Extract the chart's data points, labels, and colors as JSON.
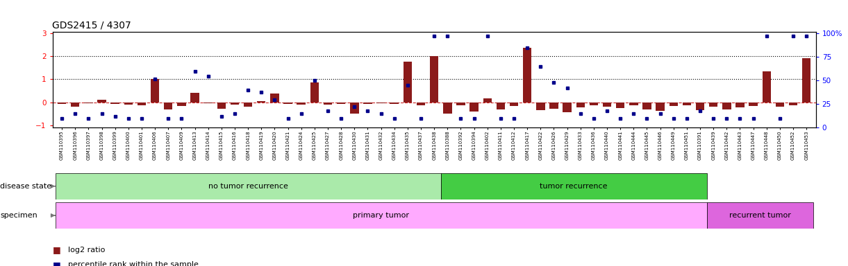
{
  "title": "GDS2415 / 4307",
  "samples": [
    "GSM110395",
    "GSM110396",
    "GSM110397",
    "GSM110398",
    "GSM110399",
    "GSM110400",
    "GSM110401",
    "GSM110406",
    "GSM110407",
    "GSM110409",
    "GSM110413",
    "GSM110414",
    "GSM110415",
    "GSM110416",
    "GSM110418",
    "GSM110419",
    "GSM110420",
    "GSM110421",
    "GSM110424",
    "GSM110425",
    "GSM110427",
    "GSM110428",
    "GSM110430",
    "GSM110431",
    "GSM110432",
    "GSM110434",
    "GSM110435",
    "GSM110437",
    "GSM110438",
    "GSM110388",
    "GSM110392",
    "GSM110394",
    "GSM110402",
    "GSM110411",
    "GSM110412",
    "GSM110417",
    "GSM110422",
    "GSM110426",
    "GSM110429",
    "GSM110433",
    "GSM110436",
    "GSM110440",
    "GSM110441",
    "GSM110444",
    "GSM110445",
    "GSM110446",
    "GSM110449",
    "GSM110451",
    "GSM110391",
    "GSM110439",
    "GSM110442",
    "GSM110443",
    "GSM110447",
    "GSM110448",
    "GSM110450",
    "GSM110452",
    "GSM110453"
  ],
  "log2_ratio": [
    -0.08,
    -0.18,
    -0.05,
    0.1,
    -0.06,
    -0.1,
    -0.12,
    1.02,
    -0.3,
    -0.15,
    0.4,
    -0.04,
    -0.28,
    -0.1,
    -0.2,
    0.04,
    0.38,
    -0.08,
    -0.1,
    0.85,
    -0.1,
    -0.06,
    -0.48,
    -0.06,
    -0.04,
    -0.08,
    1.75,
    -0.12,
    2.0,
    -0.5,
    -0.12,
    -0.4,
    0.18,
    -0.3,
    -0.15,
    2.35,
    -0.35,
    -0.28,
    -0.42,
    -0.22,
    -0.12,
    -0.18,
    -0.25,
    -0.12,
    -0.32,
    -0.38,
    -0.16,
    -0.12,
    -0.35,
    -0.2,
    -0.3,
    -0.22,
    -0.15,
    1.35,
    -0.18,
    -0.12,
    1.9
  ],
  "percentile": [
    10,
    15,
    10,
    15,
    12,
    10,
    10,
    52,
    10,
    10,
    60,
    55,
    12,
    15,
    40,
    38,
    30,
    10,
    15,
    50,
    18,
    10,
    22,
    18,
    15,
    10,
    45,
    10,
    97,
    97,
    10,
    10,
    97,
    10,
    10,
    85,
    65,
    48,
    42,
    15,
    10,
    18,
    10,
    15,
    10,
    15,
    10,
    10,
    18,
    10,
    10,
    10,
    10,
    97,
    10,
    97,
    97
  ],
  "no_recurrence_count": 29,
  "recurrence_count": 20,
  "primary_tumor_count": 49,
  "recurrent_tumor_count": 8,
  "bar_color": "#8B1A1A",
  "dot_color": "#00008B",
  "no_recurrence_color": "#AAEAAA",
  "recurrence_color": "#44CC44",
  "primary_color": "#FFAAFF",
  "recurrent_color": "#DD66DD",
  "ylim_left": [
    -1.1,
    3.05
  ],
  "ylim_right": [
    0,
    101.67
  ],
  "yticks_left": [
    -1,
    0,
    1,
    2,
    3
  ],
  "yticks_right": [
    0,
    25,
    50,
    75,
    100
  ],
  "legend_items": [
    {
      "label": "log2 ratio",
      "color": "#CC2222"
    },
    {
      "label": "percentile rank within the sample",
      "color": "#0000AA"
    }
  ]
}
